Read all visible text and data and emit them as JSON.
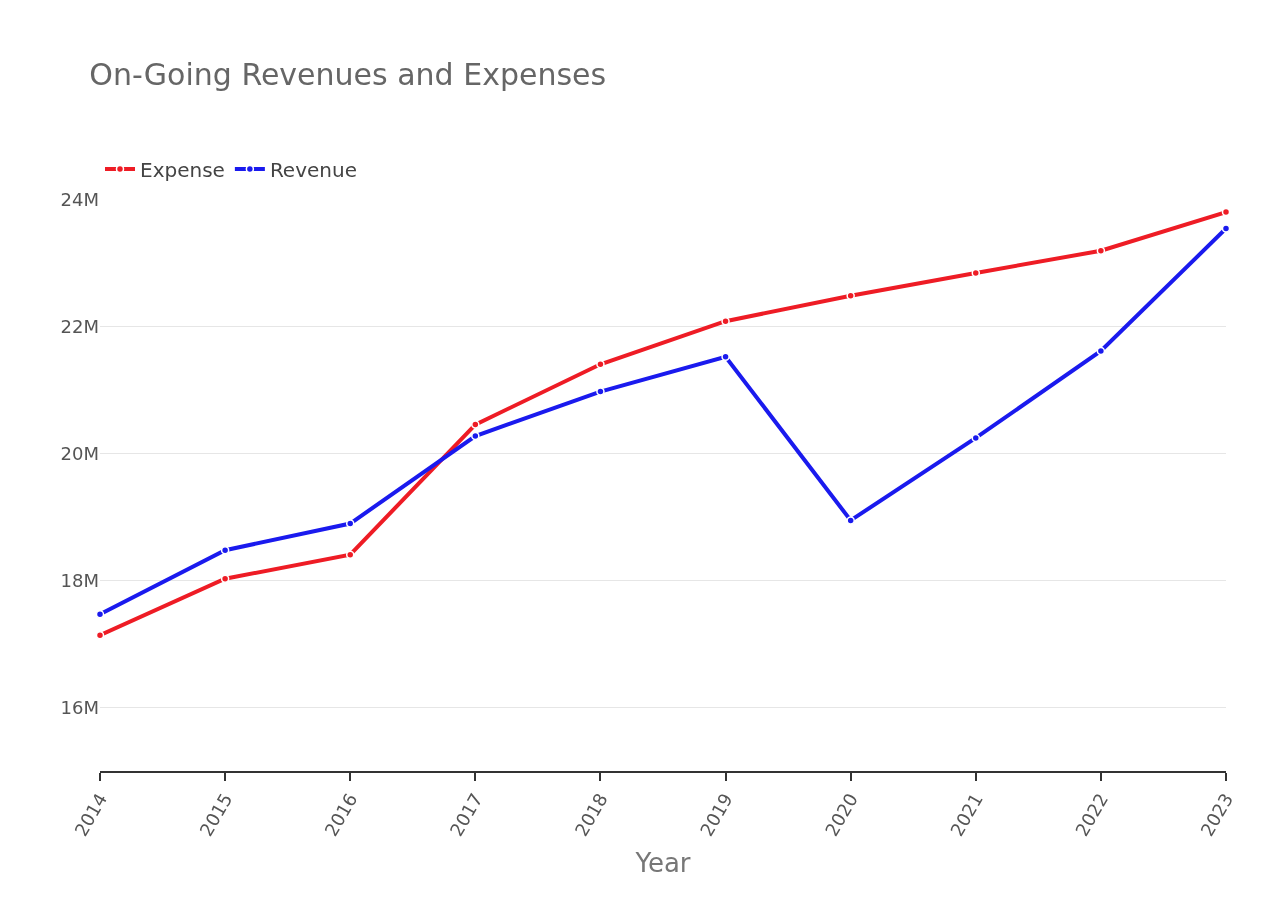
{
  "chart_data": {
    "type": "line",
    "title": "On-Going Revenues and Expenses",
    "xlabel": "Year",
    "categories": [
      "2014",
      "2015",
      "2016",
      "2017",
      "2018",
      "2019",
      "2020",
      "2021",
      "2022",
      "2023"
    ],
    "series": [
      {
        "name": "Expense",
        "color": "#ee1c25",
        "values": [
          17.14,
          18.03,
          18.41,
          20.46,
          21.41,
          22.09,
          22.49,
          22.85,
          23.2,
          23.81
        ]
      },
      {
        "name": "Revenue",
        "color": "#1a1aee",
        "values": [
          17.47,
          18.48,
          18.9,
          20.28,
          20.98,
          21.53,
          18.95,
          20.25,
          21.62,
          23.55
        ]
      }
    ],
    "ylim": [
      15,
      24
    ],
    "yticks": [
      {
        "value": 16,
        "label": "16M"
      },
      {
        "value": 18,
        "label": "18M"
      },
      {
        "value": 20,
        "label": "20M"
      },
      {
        "value": 22,
        "label": "22M"
      },
      {
        "value": 24,
        "label": "24M"
      }
    ],
    "grid": "y",
    "legend": "top left",
    "marker": "circle",
    "line_style": "solid"
  }
}
